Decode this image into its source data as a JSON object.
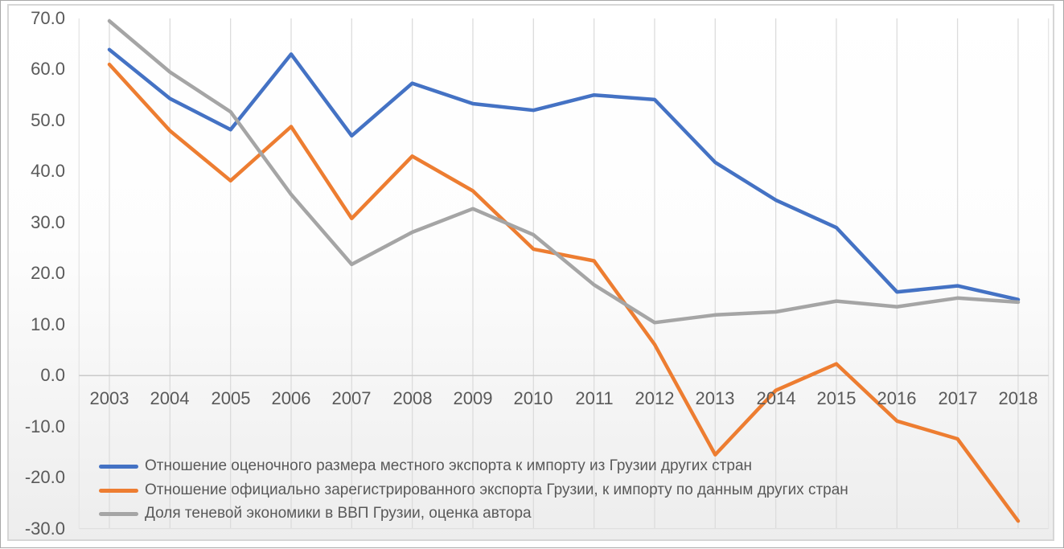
{
  "chart_data": {
    "type": "line",
    "title": "",
    "xlabel": "",
    "ylabel": "",
    "categories": [
      "2003",
      "2004",
      "2005",
      "2006",
      "2007",
      "2008",
      "2009",
      "2010",
      "2011",
      "2012",
      "2013",
      "2014",
      "2015",
      "2016",
      "2017",
      "2018"
    ],
    "series": [
      {
        "name": "Отношение оценочного размера местного экспорта к импорту из Грузии других стран",
        "color": "#4472C4",
        "values": [
          63.9,
          54.3,
          48.2,
          63.0,
          47.0,
          57.3,
          53.3,
          52.0,
          55.0,
          54.1,
          41.8,
          34.4,
          29.0,
          16.4,
          17.6,
          14.9
        ]
      },
      {
        "name": "Отношение официально зарегистрированного экспорта Грузии, к импорту по данным других стран",
        "color": "#ED7D31",
        "values": [
          61.0,
          48.0,
          38.2,
          48.8,
          30.8,
          43.0,
          36.2,
          24.8,
          22.5,
          6.1,
          -15.5,
          -2.9,
          2.3,
          -8.9,
          -12.4,
          -28.5
        ]
      },
      {
        "name": "Доля теневой экономики в ВВП Грузии, оценка автора",
        "color": "#A5A5A5",
        "values": [
          69.5,
          59.5,
          51.7,
          35.5,
          21.8,
          28.1,
          32.7,
          27.6,
          17.8,
          10.4,
          11.9,
          12.5,
          14.6,
          13.5,
          15.2,
          14.4
        ]
      }
    ],
    "ylim": [
      -30,
      70
    ],
    "y_tick_step": 10,
    "y_tick_labels": [
      "70.0",
      "60.0",
      "50.0",
      "40.0",
      "30.0",
      "20.0",
      "10.0",
      "0.0",
      "-10.0",
      "-20.0",
      "-30.0"
    ],
    "grid": "vertical-gridlines-per-category",
    "legend_position": "bottom-left",
    "colors": {
      "axis_text": "#595959",
      "legend_text": "#595959",
      "gridline": "#dcdcdc",
      "plot_edge": "#e5e5e5",
      "zero_axis_line": "#c9c9c9",
      "plot_bottom_line": "#e0e0e0"
    }
  }
}
